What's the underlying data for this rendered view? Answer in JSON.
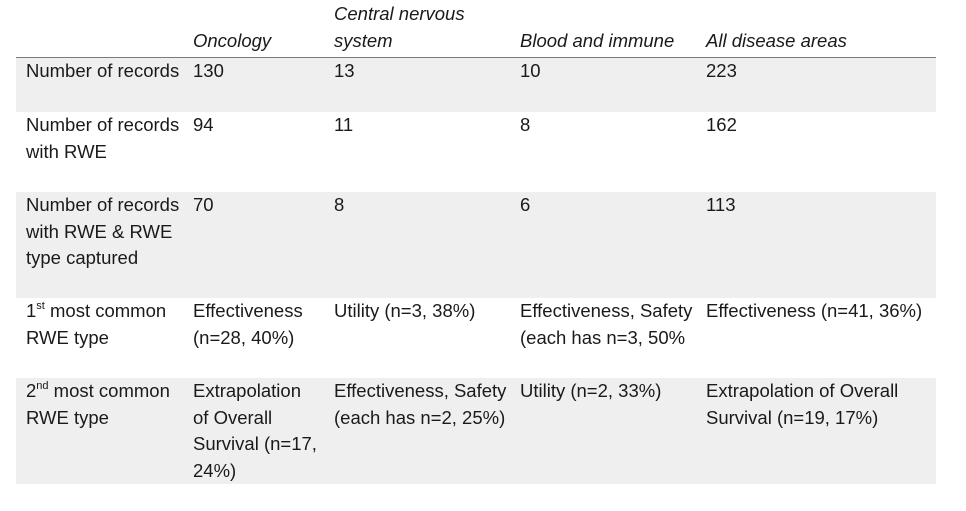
{
  "table": {
    "headers": [
      "",
      "Oncology",
      "Central nervous system",
      "Blood and immune",
      "All disease areas"
    ],
    "rows": [
      {
        "label": "Number of records",
        "cells": [
          "130",
          "13",
          "10",
          "223"
        ]
      },
      {
        "label": "Number of records with RWE",
        "cells": [
          "94",
          "11",
          "8",
          "162"
        ]
      },
      {
        "label": "Number of records with RWE & RWE type captured",
        "cells": [
          "70",
          "8",
          "6",
          "113"
        ]
      },
      {
        "label_ordinal": "1",
        "label_sup": "st",
        "label_rest": " most common RWE type",
        "cells": [
          "Effectiveness (n=28, 40%)",
          "Utility (n=3, 38%)",
          "Effectiveness, Safety (each has n=3, 50%",
          "Effectiveness (n=41, 36%)"
        ]
      },
      {
        "label_ordinal": "2",
        "label_sup": "nd",
        "label_rest": " most common RWE type",
        "cells": [
          "Extrapolation of Overall Survival (n=17, 24%)",
          "Effectiveness, Safety (each has n=2, 25%)",
          "Utility (n=2, 33%)",
          "Extrapolation of Overall Survival (n=19, 17%)"
        ]
      }
    ]
  },
  "colors": {
    "row_shade": "#efefef",
    "header_rule": "#7a7a7a",
    "text": "#1a1a1a"
  }
}
